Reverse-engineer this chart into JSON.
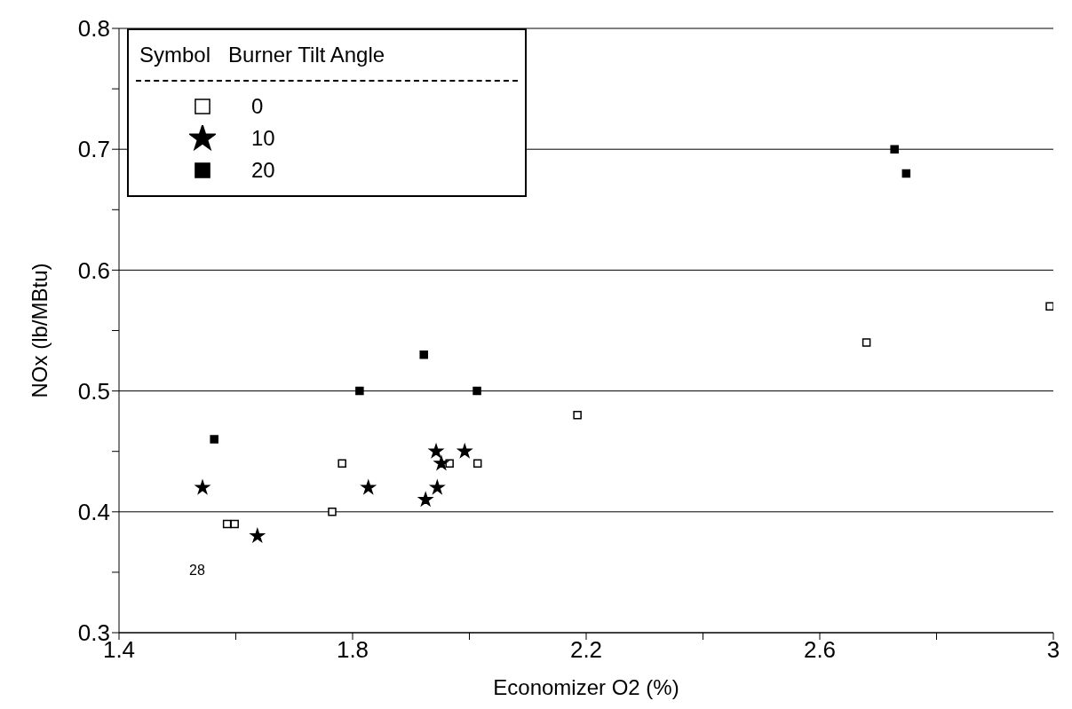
{
  "chart_data": {
    "type": "scatter",
    "xlabel": "Economizer O2 (%)",
    "ylabel": "NOx (lb/MBtu)",
    "legend_title": "Symbol   Burner Tilt Angle",
    "legend": "top left",
    "grid": "y",
    "xlim": [
      1.4,
      3
    ],
    "xticks": [
      1.4,
      {
        "value": 1.6,
        "label": null
      },
      1.8,
      {
        "value": 2.0,
        "label": null
      },
      2.2,
      {
        "value": 2.4,
        "label": null
      },
      2.6,
      {
        "value": 2.8,
        "label": null
      },
      3
    ],
    "ylim": [
      0.3,
      0.8
    ],
    "yticks": [
      0.3,
      {
        "value": 0.35,
        "label": null
      },
      0.4,
      {
        "value": 0.45,
        "label": null
      },
      0.5,
      {
        "value": 0.55,
        "label": null
      },
      0.6,
      {
        "value": 0.65,
        "label": null
      },
      0.7,
      {
        "value": 0.75,
        "label": null
      },
      0.8
    ],
    "annotations": [
      "28"
    ],
    "series": [
      {
        "name": "0",
        "color": "#ffffff",
        "marker": "square",
        "x": [
          1.585,
          1.598,
          1.765,
          1.782,
          1.966,
          2.014,
          2.185,
          2.68,
          2.994
        ],
        "values": [
          0.39,
          0.39,
          0.4,
          0.44,
          0.44,
          0.44,
          0.48,
          0.54,
          0.57
        ]
      },
      {
        "name": "10",
        "color": "#000000",
        "marker": "star",
        "x": [
          1.543,
          1.637,
          1.827,
          1.925,
          1.945,
          1.943,
          1.952,
          1.992
        ],
        "values": [
          0.42,
          0.38,
          0.42,
          0.41,
          0.42,
          0.45,
          0.44,
          0.45
        ]
      },
      {
        "name": "20",
        "color": "#000000",
        "marker": "square",
        "x": [
          1.563,
          1.812,
          1.922,
          2.013,
          2.728,
          2.748
        ],
        "values": [
          0.46,
          0.5,
          0.53,
          0.5,
          0.7,
          0.68
        ]
      }
    ]
  }
}
